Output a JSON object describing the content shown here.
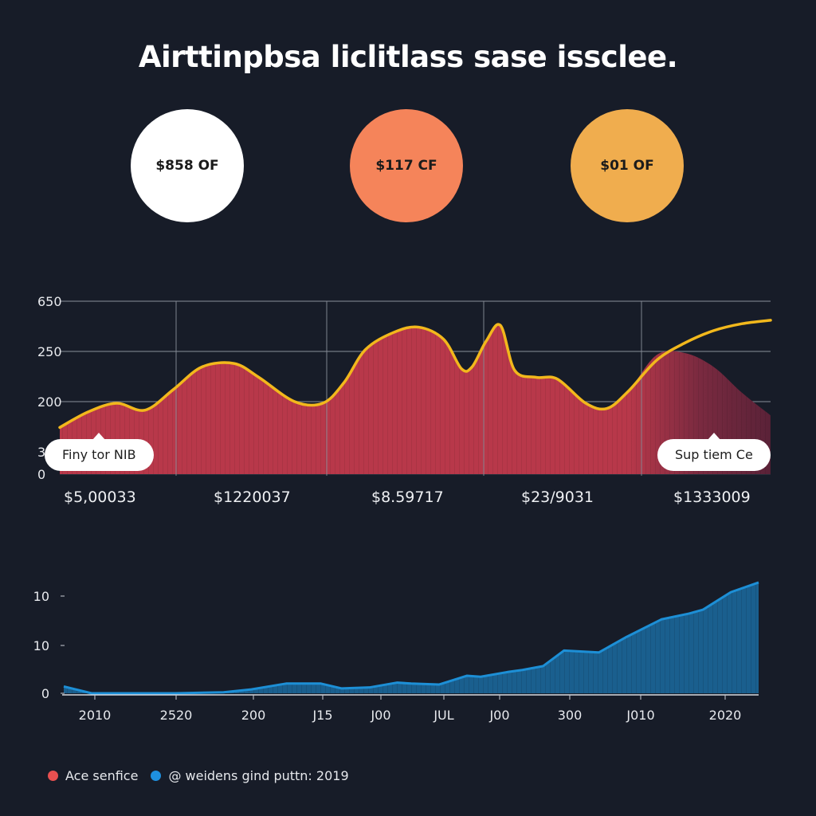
{
  "title": "Airttinpbsa liclitlass sase issclee.",
  "kpis": [
    {
      "label": "$858 OF",
      "color": "#ffffff"
    },
    {
      "label": "$117 CF",
      "color": "#f5845a"
    },
    {
      "label": "$01 OF",
      "color": "#f0ad4e"
    }
  ],
  "colors": {
    "background": "#171c28",
    "area_fill": "#b8384a",
    "line": "#f2b81c",
    "grid": "#8a8f9a",
    "blue_line": "#1d8fd6",
    "blue_fill": "#1a5f8e",
    "legend_red": "#e85050",
    "legend_blue": "#1e90e0"
  },
  "callouts": [
    {
      "label": "Finy tor NIB"
    },
    {
      "label": "Sup tiem Ce"
    }
  ],
  "value_labels": [
    "$5,00033",
    "$1220037",
    "$8.59717",
    "$23/9031",
    "$1333009"
  ],
  "legend": [
    {
      "label": "Ace senfice",
      "color": "#e85050"
    },
    {
      "label": "@ weidens gind puttn: 2019",
      "color": "#1e90e0"
    }
  ],
  "chart_data": [
    {
      "type": "area",
      "title": "",
      "ylabel": "",
      "xlabel": "",
      "y_tick_labels": [
        "650",
        "250",
        "200",
        "3",
        "0"
      ],
      "grid": true,
      "y_scale_note": "tick labels are non-linear; values expressed in fraction of plot height (0 = baseline, 1 = top gridline)",
      "x": [
        0,
        0.04,
        0.08,
        0.12,
        0.16,
        0.2,
        0.245,
        0.28,
        0.33,
        0.37,
        0.4,
        0.43,
        0.47,
        0.505,
        0.54,
        0.565,
        0.58,
        0.6,
        0.62,
        0.64,
        0.67,
        0.7,
        0.74,
        0.77,
        0.8,
        0.84,
        0.88,
        0.92,
        0.96,
        1.0
      ],
      "series": [
        {
          "name": "Ace senfice (line)",
          "values": [
            0.27,
            0.36,
            0.41,
            0.37,
            0.49,
            0.62,
            0.64,
            0.56,
            0.42,
            0.41,
            0.53,
            0.72,
            0.82,
            0.85,
            0.78,
            0.61,
            0.62,
            0.77,
            0.86,
            0.6,
            0.56,
            0.55,
            0.41,
            0.38,
            0.48,
            0.66,
            0.76,
            0.83,
            0.87,
            0.89
          ]
        },
        {
          "name": "Ace senfice (area)",
          "values": [
            0.27,
            0.36,
            0.41,
            0.37,
            0.49,
            0.62,
            0.64,
            0.56,
            0.42,
            0.41,
            0.53,
            0.72,
            0.82,
            0.85,
            0.78,
            0.61,
            0.62,
            0.77,
            0.86,
            0.6,
            0.56,
            0.55,
            0.41,
            0.38,
            0.48,
            0.69,
            0.7,
            0.62,
            0.47,
            0.34
          ]
        }
      ]
    },
    {
      "type": "area",
      "title": "",
      "xlabel": "",
      "ylabel": "",
      "y_tick_labels": [
        "10",
        "10",
        "0"
      ],
      "x_tick_labels": [
        "2010",
        "2520",
        "200",
        "J15",
        "J00",
        "JUL",
        "J00",
        "300",
        "J010",
        "2020"
      ],
      "grid": false,
      "y_scale_note": "values in fraction of plot height (0 = baseline, 1 = top tick)",
      "x": [
        0,
        0.04,
        0.1,
        0.16,
        0.23,
        0.27,
        0.32,
        0.37,
        0.4,
        0.44,
        0.48,
        0.5,
        0.54,
        0.58,
        0.6,
        0.64,
        0.66,
        0.69,
        0.72,
        0.77,
        0.81,
        0.86,
        0.9,
        0.92,
        0.96,
        1.0
      ],
      "series": [
        {
          "name": "@ weidens gind puttn: 2019",
          "values": [
            0.07,
            0.0,
            0.0,
            0.0,
            0.01,
            0.04,
            0.1,
            0.1,
            0.05,
            0.06,
            0.11,
            0.1,
            0.09,
            0.18,
            0.17,
            0.22,
            0.24,
            0.28,
            0.44,
            0.42,
            0.58,
            0.76,
            0.82,
            0.86,
            1.04,
            1.14
          ]
        }
      ]
    }
  ]
}
